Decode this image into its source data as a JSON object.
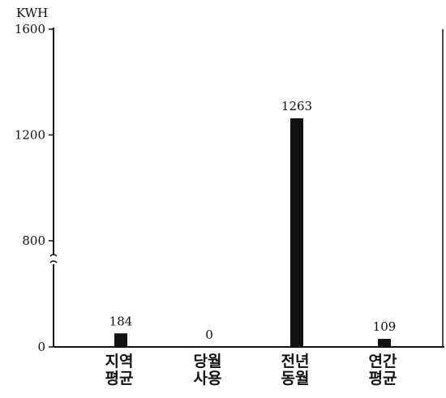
{
  "chart_data": {
    "type": "bar",
    "unit_label": "KWH",
    "categories": [
      [
        "지역",
        "평균"
      ],
      [
        "당월",
        "사용"
      ],
      [
        "전년",
        "동월"
      ],
      [
        "연간",
        "평균"
      ]
    ],
    "values": [
      184,
      0,
      1263,
      109
    ],
    "value_labels": [
      "184",
      "0",
      "1263",
      "109"
    ],
    "y_ticks": [
      0,
      800,
      1200,
      1600
    ],
    "y_tick_labels": [
      "0",
      "800",
      "1200",
      "1600"
    ],
    "y_axis_break": true,
    "ylim": [
      0,
      1600
    ],
    "grid": false,
    "bar_color": "#111111"
  }
}
